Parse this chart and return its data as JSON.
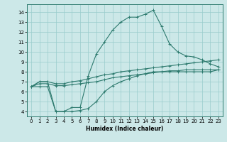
{
  "xlabel": "Humidex (Indice chaleur)",
  "xlim": [
    -0.5,
    23.5
  ],
  "ylim": [
    3.5,
    14.8
  ],
  "xticks": [
    0,
    1,
    2,
    3,
    4,
    5,
    6,
    7,
    8,
    9,
    10,
    11,
    12,
    13,
    14,
    15,
    16,
    17,
    18,
    19,
    20,
    21,
    22,
    23
  ],
  "yticks": [
    4,
    5,
    6,
    7,
    8,
    9,
    10,
    11,
    12,
    13,
    14
  ],
  "background_color": "#cce8e8",
  "grid_color": "#99cccc",
  "line_color": "#2d7a6e",
  "lines": [
    {
      "x": [
        0,
        1,
        2,
        3,
        4,
        5,
        6,
        7,
        8,
        9,
        10,
        11,
        12,
        13,
        14,
        15,
        16,
        17,
        18,
        19,
        20,
        21,
        22,
        23
      ],
      "y": [
        6.5,
        7.0,
        7.0,
        4.0,
        4.0,
        4.4,
        4.4,
        7.6,
        9.8,
        11.0,
        12.2,
        13.0,
        13.5,
        13.5,
        13.8,
        14.2,
        12.6,
        10.8,
        10.0,
        9.6,
        9.5,
        9.2,
        8.8,
        8.5
      ]
    },
    {
      "x": [
        0,
        1,
        2,
        3,
        4,
        5,
        6,
        7,
        8,
        9,
        10,
        11,
        12,
        13,
        14,
        15,
        16,
        17,
        18,
        19,
        20,
        21,
        22,
        23
      ],
      "y": [
        6.5,
        7.0,
        7.0,
        6.8,
        6.8,
        7.0,
        7.1,
        7.3,
        7.5,
        7.7,
        7.8,
        8.0,
        8.1,
        8.2,
        8.3,
        8.4,
        8.5,
        8.6,
        8.7,
        8.8,
        8.9,
        9.0,
        9.1,
        9.2
      ]
    },
    {
      "x": [
        0,
        1,
        2,
        3,
        4,
        5,
        6,
        7,
        8,
        9,
        10,
        11,
        12,
        13,
        14,
        15,
        16,
        17,
        18,
        19,
        20,
        21,
        22,
        23
      ],
      "y": [
        6.5,
        6.8,
        6.8,
        6.6,
        6.6,
        6.7,
        6.8,
        6.9,
        7.0,
        7.2,
        7.4,
        7.5,
        7.6,
        7.7,
        7.8,
        7.9,
        8.0,
        8.1,
        8.1,
        8.2,
        8.2,
        8.2,
        8.2,
        8.2
      ]
    },
    {
      "x": [
        0,
        1,
        2,
        3,
        4,
        5,
        6,
        7,
        8,
        9,
        10,
        11,
        12,
        13,
        14,
        15,
        16,
        17,
        18,
        19,
        20,
        21,
        22,
        23
      ],
      "y": [
        6.5,
        6.5,
        6.5,
        4.0,
        4.0,
        4.0,
        4.1,
        4.3,
        5.0,
        6.0,
        6.6,
        7.0,
        7.3,
        7.6,
        7.8,
        8.0,
        8.0,
        8.0,
        8.0,
        8.0,
        8.0,
        8.0,
        8.0,
        8.2
      ]
    }
  ]
}
